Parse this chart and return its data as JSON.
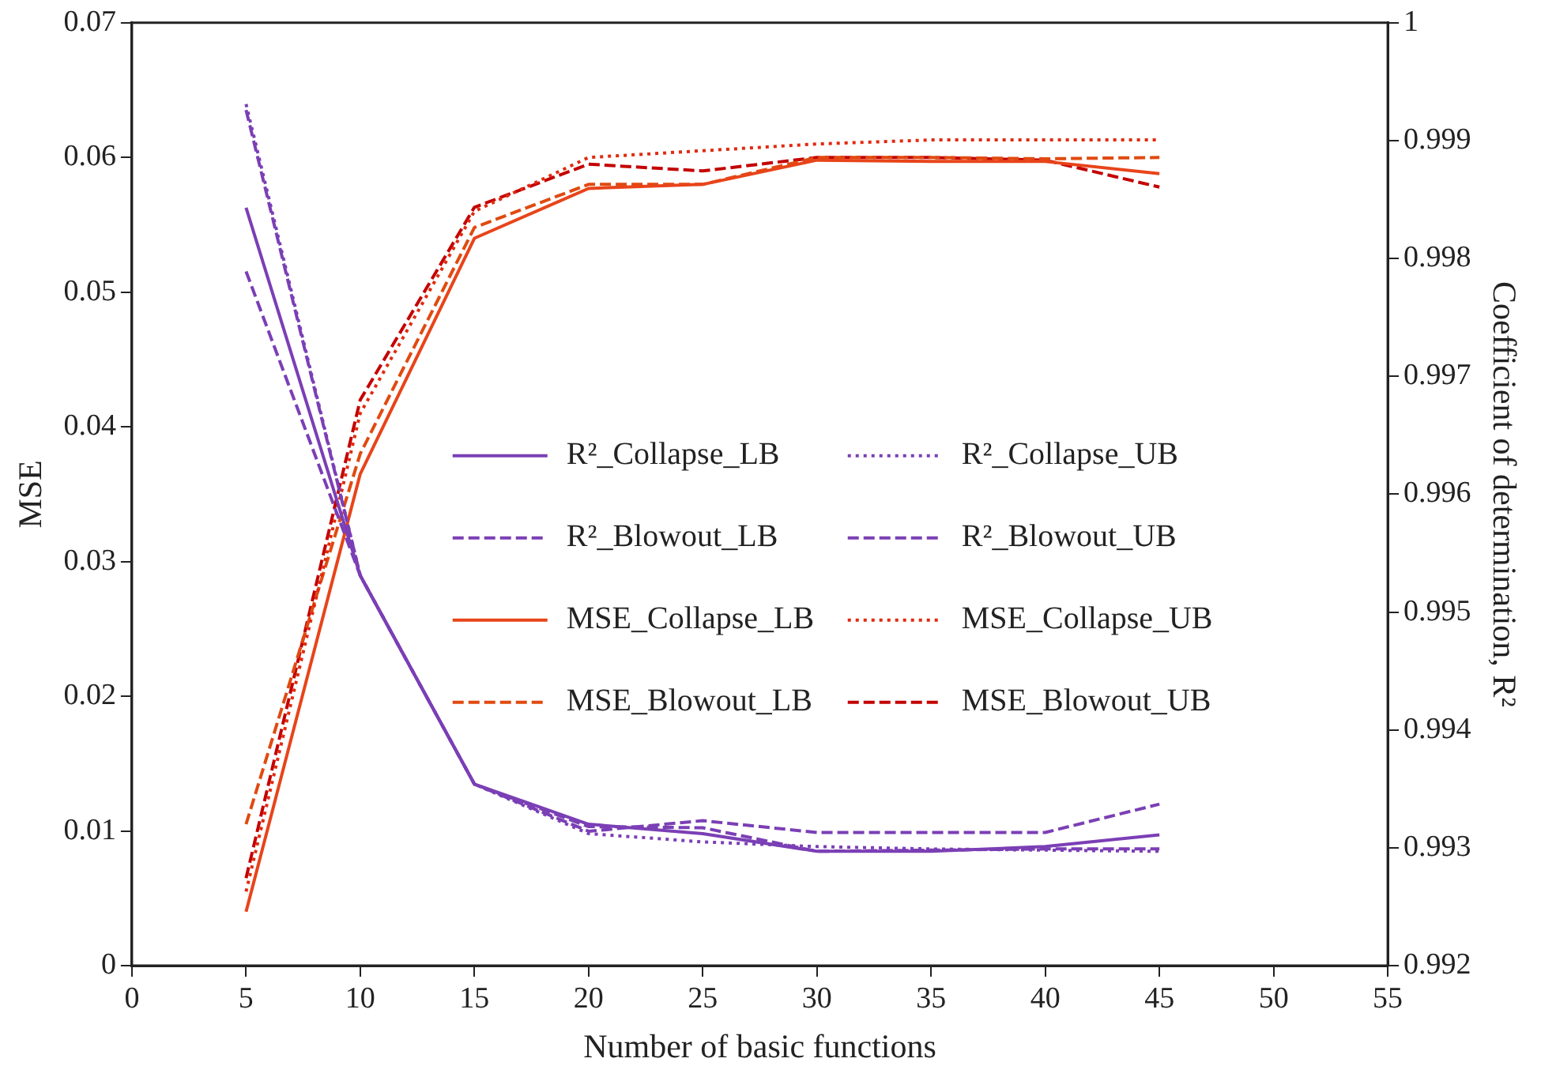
{
  "chart_data": {
    "type": "line",
    "xlabel": "Number of basic functions",
    "ylabel": "MSE",
    "y2label": "Coefficient of determination, R²",
    "x": [
      5,
      10,
      15,
      20,
      25,
      30,
      35,
      40,
      45
    ],
    "xlim": [
      0,
      55
    ],
    "xticks": [
      0,
      5,
      10,
      15,
      20,
      25,
      30,
      35,
      40,
      45,
      50,
      55
    ],
    "ylim": [
      0,
      0.07
    ],
    "yticks": [
      0,
      0.01,
      0.02,
      0.03,
      0.04,
      0.05,
      0.06,
      0.07
    ],
    "y2lim": [
      0.992,
      1
    ],
    "y2ticks": [
      0.992,
      0.993,
      0.994,
      0.995,
      0.996,
      0.997,
      0.998,
      0.999,
      1
    ],
    "legend": "center",
    "marker": "none",
    "series": [
      {
        "name": "R²_Collapse_LB",
        "color": "#7b3fb5",
        "axis": "y2",
        "line_style": "solid",
        "values": [
          0.99843,
          0.99531,
          0.99354,
          0.9932,
          0.99312,
          0.99297,
          0.99297,
          0.99301,
          0.99311
        ]
      },
      {
        "name": "R²_Collapse_UB",
        "color": "#7b3fb5",
        "axis": "y2",
        "line_style": "dotted",
        "values": [
          0.99931,
          0.99531,
          0.99354,
          0.99312,
          0.99305,
          0.99301,
          0.99299,
          0.99298,
          0.99297
        ]
      },
      {
        "name": "R²_Blowout_LB",
        "color": "#7b3fb5",
        "axis": "y2",
        "line_style": "dashed",
        "values": [
          0.99789,
          0.99531,
          0.99354,
          0.99318,
          0.99317,
          0.99297,
          0.99298,
          0.99299,
          0.99299
        ]
      },
      {
        "name": "R²_Blowout_UB",
        "color": "#7b3fb5",
        "axis": "y2",
        "line_style": "dashed",
        "values": [
          0.99926,
          0.99531,
          0.99354,
          0.99314,
          0.99323,
          0.99313,
          0.99313,
          0.99313,
          0.99337
        ]
      },
      {
        "name": "MSE_Collapse_LB",
        "color": "#e8441a",
        "axis": "y",
        "line_style": "solid",
        "values": [
          0.004,
          0.0365,
          0.054,
          0.0577,
          0.058,
          0.0598,
          0.0597,
          0.0597,
          0.0588
        ]
      },
      {
        "name": "MSE_Collapse_UB",
        "color": "#e02a10",
        "axis": "y",
        "line_style": "dotted",
        "values": [
          0.0055,
          0.041,
          0.056,
          0.06,
          0.0605,
          0.061,
          0.0613,
          0.0613,
          0.0613
        ]
      },
      {
        "name": "MSE_Blowout_LB",
        "color": "#e04a10",
        "axis": "y",
        "line_style": "dashed",
        "values": [
          0.0105,
          0.038,
          0.0548,
          0.058,
          0.058,
          0.06,
          0.06,
          0.0599,
          0.06
        ]
      },
      {
        "name": "MSE_Blowout_UB",
        "color": "#c40000",
        "axis": "y",
        "line_style": "dashed",
        "values": [
          0.0065,
          0.042,
          0.0563,
          0.0595,
          0.059,
          0.06,
          0.06,
          0.0598,
          0.0578
        ]
      }
    ]
  }
}
